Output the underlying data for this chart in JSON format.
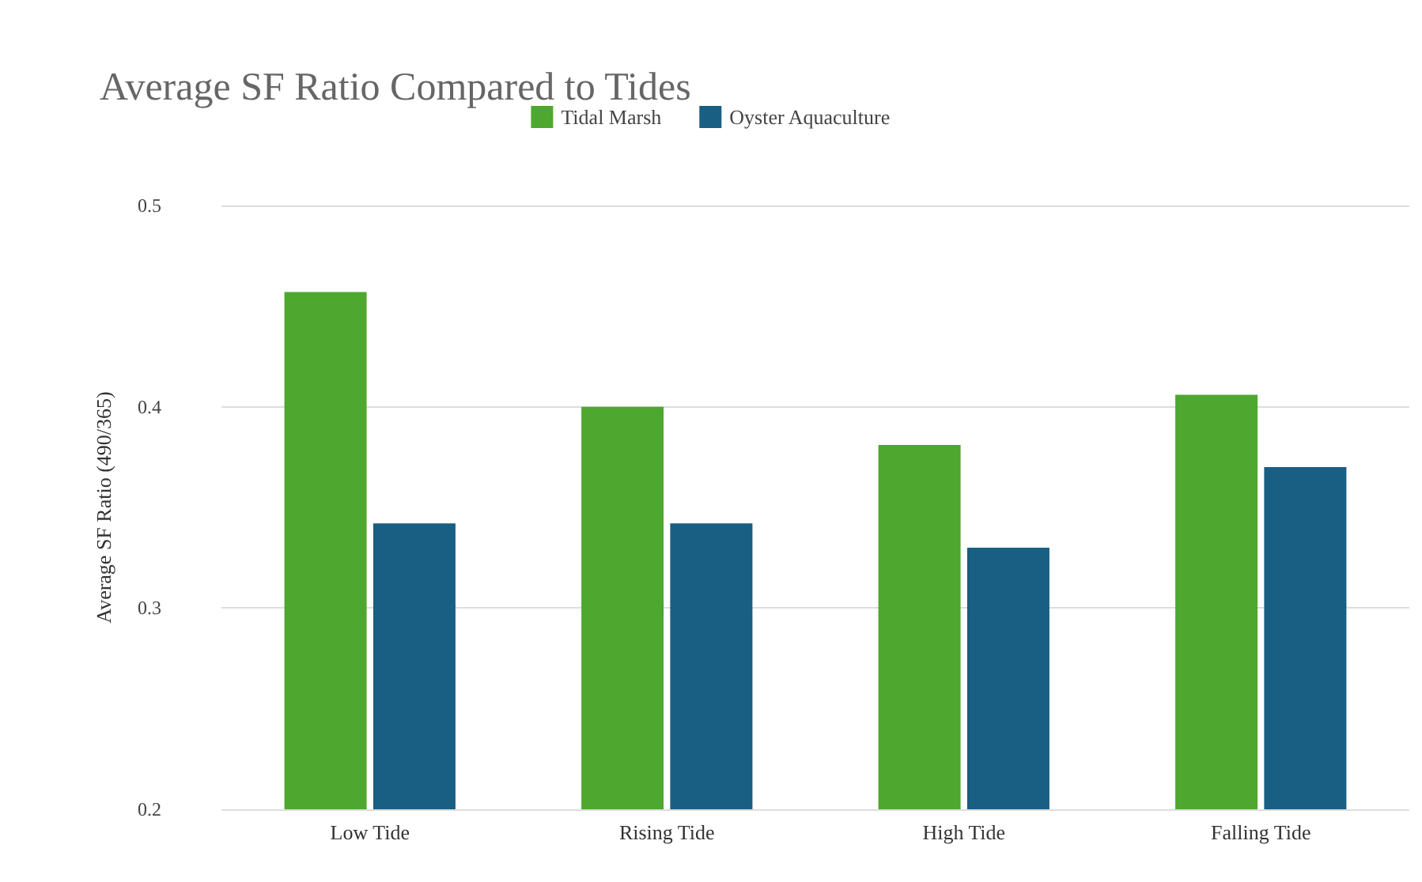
{
  "chart_data": {
    "type": "bar",
    "title": "Average SF Ratio Compared to Tides",
    "ylabel": "Average SF Ratio (490/365)",
    "categories": [
      "Low Tide",
      "Rising Tide",
      "High Tide",
      "Falling Tide"
    ],
    "series": [
      {
        "name": "Tidal Marsh",
        "color": "#4ea72e",
        "values": [
          0.457,
          0.4,
          0.381,
          0.406
        ]
      },
      {
        "name": "Oyster Aquaculture",
        "color": "#195e83",
        "values": [
          0.342,
          0.342,
          0.33,
          0.37
        ]
      }
    ],
    "ylim": [
      0.2,
      0.5
    ],
    "yticks": [
      0.2,
      0.3,
      0.4,
      0.5
    ],
    "grid": "y",
    "legend": "top"
  }
}
